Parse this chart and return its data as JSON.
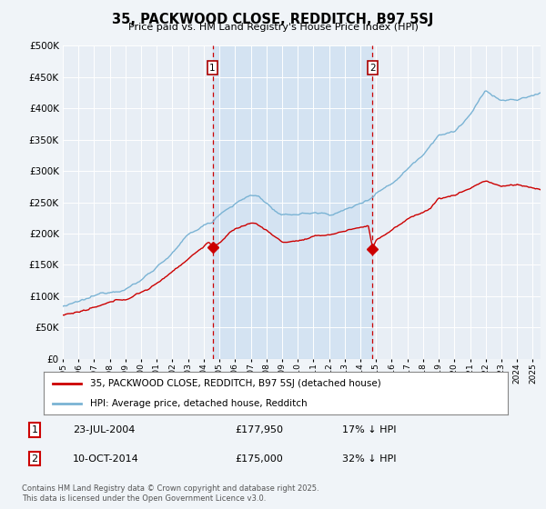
{
  "title": "35, PACKWOOD CLOSE, REDDITCH, B97 5SJ",
  "subtitle": "Price paid vs. HM Land Registry's House Price Index (HPI)",
  "legend_line1": "35, PACKWOOD CLOSE, REDDITCH, B97 5SJ (detached house)",
  "legend_line2": "HPI: Average price, detached house, Redditch",
  "transaction1_date": "23-JUL-2004",
  "transaction1_price": "£177,950",
  "transaction1_hpi": "17% ↓ HPI",
  "transaction2_date": "10-OCT-2014",
  "transaction2_price": "£175,000",
  "transaction2_hpi": "32% ↓ HPI",
  "vline1_x": 2004.56,
  "vline2_x": 2014.78,
  "hpi_color": "#7ab3d4",
  "price_color": "#cc0000",
  "vline_color": "#cc0000",
  "shade_color": "#d0e4f5",
  "background_color": "#f0f4f8",
  "plot_bg_color": "#e8eef5",
  "ylim_min": 0,
  "ylim_max": 500000,
  "ytick_step": 50000,
  "xmin": 1995,
  "xmax": 2025.5,
  "footnote": "Contains HM Land Registry data © Crown copyright and database right 2025.\nThis data is licensed under the Open Government Licence v3.0."
}
